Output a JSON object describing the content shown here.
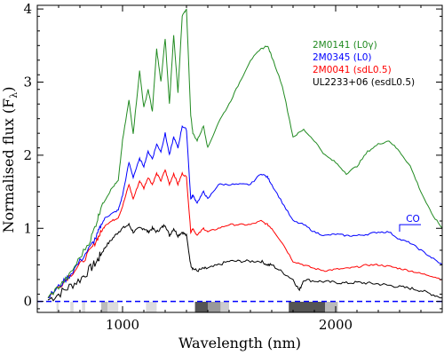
{
  "chart_data": {
    "type": "line",
    "title": "",
    "xlabel": "Wavelength (nm)",
    "ylabel": "Normalised flux  (F",
    "ylabel_sub": "λ",
    "ylabel_close": ")",
    "xlim": [
      600,
      2500
    ],
    "ylim": [
      -0.15,
      4.05
    ],
    "xticks": [
      1000,
      2000
    ],
    "xtick_labels": [
      "1000",
      "2000"
    ],
    "yticks": [
      0,
      1,
      2,
      3,
      4
    ],
    "ytick_labels": [
      "0",
      "1",
      "2",
      "3",
      "4"
    ],
    "grid": false,
    "legend_position": "upper-right",
    "legend": [
      {
        "label": "2M0141 (L0γ)",
        "color": "#228B22"
      },
      {
        "label": "2M0345 (L0)",
        "color": "#0000ff"
      },
      {
        "label": "2M0041 (sdL0.5)",
        "color": "#ff0000"
      },
      {
        "label": "UL2233+06 (esdL0.5)",
        "color": "#000000"
      }
    ],
    "series": [
      {
        "name": "2M0141 (L0γ)",
        "color": "#228B22",
        "x": [
          650,
          700,
          750,
          800,
          850,
          880,
          900,
          920,
          950,
          980,
          1000,
          1030,
          1050,
          1080,
          1100,
          1120,
          1140,
          1160,
          1180,
          1200,
          1220,
          1240,
          1260,
          1280,
          1300,
          1320,
          1330,
          1350,
          1380,
          1400,
          1450,
          1500,
          1550,
          1600,
          1650,
          1680,
          1700,
          1750,
          1800,
          1850,
          1900,
          1950,
          2000,
          2050,
          2100,
          2150,
          2200,
          2250,
          2300,
          2350,
          2400,
          2450,
          2500
        ],
        "y": [
          0.05,
          0.2,
          0.35,
          0.6,
          0.85,
          1.1,
          1.3,
          1.4,
          1.55,
          1.65,
          2.2,
          2.75,
          2.3,
          3.15,
          2.65,
          2.9,
          2.6,
          3.45,
          3.0,
          3.6,
          2.7,
          3.65,
          2.85,
          3.9,
          4.0,
          2.55,
          2.3,
          2.2,
          2.4,
          2.1,
          2.45,
          2.7,
          3.0,
          3.3,
          3.45,
          3.5,
          3.35,
          2.95,
          2.25,
          2.35,
          2.2,
          2.0,
          1.9,
          1.75,
          1.85,
          2.05,
          2.15,
          2.2,
          2.05,
          1.85,
          1.5,
          1.2,
          1.0
        ]
      },
      {
        "name": "2M0345 (L0)",
        "color": "#0000ff",
        "x": [
          650,
          700,
          750,
          800,
          850,
          880,
          900,
          920,
          950,
          980,
          1000,
          1030,
          1050,
          1080,
          1100,
          1120,
          1140,
          1160,
          1180,
          1200,
          1220,
          1240,
          1260,
          1280,
          1300,
          1320,
          1330,
          1350,
          1380,
          1400,
          1450,
          1500,
          1550,
          1600,
          1650,
          1680,
          1700,
          1750,
          1800,
          1850,
          1900,
          1950,
          2000,
          2050,
          2100,
          2150,
          2200,
          2250,
          2300,
          2350,
          2400,
          2450,
          2500
        ],
        "y": [
          0.05,
          0.2,
          0.35,
          0.55,
          0.75,
          0.9,
          1.05,
          1.15,
          1.2,
          1.25,
          1.45,
          1.9,
          1.7,
          1.95,
          1.85,
          2.05,
          1.95,
          2.15,
          2.05,
          2.3,
          2.0,
          2.25,
          2.1,
          2.4,
          2.35,
          1.4,
          1.45,
          1.35,
          1.5,
          1.4,
          1.6,
          1.6,
          1.6,
          1.6,
          1.75,
          1.7,
          1.6,
          1.35,
          1.1,
          1.05,
          0.95,
          0.9,
          0.92,
          0.9,
          0.9,
          0.92,
          0.95,
          0.95,
          0.85,
          0.8,
          0.7,
          0.6,
          0.5
        ]
      },
      {
        "name": "2M0041 (sdL0.5)",
        "color": "#ff0000",
        "x": [
          650,
          700,
          750,
          800,
          850,
          880,
          900,
          920,
          950,
          980,
          1000,
          1030,
          1050,
          1080,
          1100,
          1120,
          1140,
          1160,
          1180,
          1200,
          1220,
          1240,
          1260,
          1280,
          1300,
          1320,
          1330,
          1350,
          1380,
          1400,
          1450,
          1500,
          1550,
          1600,
          1650,
          1680,
          1700,
          1750,
          1800,
          1850,
          1900,
          1950,
          2000,
          2050,
          2100,
          2150,
          2200,
          2250,
          2300,
          2350,
          2400,
          2450,
          2500
        ],
        "y": [
          0.05,
          0.2,
          0.35,
          0.5,
          0.7,
          0.85,
          0.95,
          1.05,
          1.1,
          1.15,
          1.3,
          1.6,
          1.4,
          1.65,
          1.55,
          1.7,
          1.6,
          1.75,
          1.65,
          1.8,
          1.6,
          1.75,
          1.6,
          1.75,
          1.7,
          0.95,
          1.0,
          0.9,
          1.0,
          0.95,
          1.0,
          1.05,
          1.05,
          1.05,
          1.1,
          1.05,
          1.0,
          0.8,
          0.55,
          0.5,
          0.45,
          0.42,
          0.44,
          0.45,
          0.47,
          0.5,
          0.5,
          0.48,
          0.45,
          0.42,
          0.38,
          0.35,
          0.3
        ]
      },
      {
        "name": "UL2233+06 (esdL0.5)",
        "color": "#000000",
        "x": [
          650,
          700,
          750,
          800,
          850,
          880,
          900,
          920,
          950,
          980,
          1000,
          1030,
          1050,
          1080,
          1100,
          1120,
          1140,
          1160,
          1180,
          1200,
          1220,
          1240,
          1260,
          1280,
          1300,
          1320,
          1330,
          1350,
          1380,
          1400,
          1450,
          1500,
          1550,
          1600,
          1650,
          1680,
          1700,
          1750,
          1800,
          1830,
          1850,
          1900,
          1950,
          2000,
          2050,
          2100,
          2150,
          2200,
          2250,
          2300,
          2350,
          2400,
          2450,
          2500
        ],
        "y": [
          0.02,
          0.1,
          0.2,
          0.3,
          0.45,
          0.55,
          0.65,
          0.75,
          0.85,
          0.95,
          1.0,
          1.05,
          0.95,
          1.0,
          1.0,
          0.95,
          1.0,
          0.95,
          1.0,
          1.05,
          0.9,
          1.0,
          0.9,
          0.95,
          0.9,
          0.5,
          0.45,
          0.42,
          0.45,
          0.45,
          0.5,
          0.55,
          0.55,
          0.55,
          0.55,
          0.5,
          0.5,
          0.4,
          0.3,
          0.15,
          0.3,
          0.28,
          0.27,
          0.26,
          0.25,
          0.26,
          0.25,
          0.24,
          0.22,
          0.2,
          0.18,
          0.15,
          0.1,
          0.05
        ]
      }
    ],
    "zero_line": {
      "y": 0,
      "color": "#0000ff",
      "style": "dashed"
    },
    "telluric_bands": [
      {
        "x0": 690,
        "x1": 700,
        "shade": "#dddddd"
      },
      {
        "x0": 755,
        "x1": 770,
        "shade": "#dddddd"
      },
      {
        "x0": 810,
        "x1": 825,
        "shade": "#dddddd"
      },
      {
        "x0": 900,
        "x1": 930,
        "shade": "#bbbbbb"
      },
      {
        "x0": 930,
        "x1": 980,
        "shade": "#dddddd"
      },
      {
        "x0": 1110,
        "x1": 1160,
        "shade": "#dddddd"
      },
      {
        "x0": 1340,
        "x1": 1400,
        "shade": "#555555"
      },
      {
        "x0": 1400,
        "x1": 1460,
        "shade": "#999999"
      },
      {
        "x0": 1460,
        "x1": 1500,
        "shade": "#cccccc"
      },
      {
        "x0": 1780,
        "x1": 1950,
        "shade": "#555555"
      },
      {
        "x0": 1950,
        "x1": 2010,
        "shade": "#bbbbbb"
      }
    ],
    "annotations": [
      {
        "text": "CO",
        "x": 2330,
        "y": 1.1,
        "color": "#0000ff",
        "bracket_x": [
          2300,
          2400
        ],
        "bracket_y": 1.05
      }
    ]
  }
}
